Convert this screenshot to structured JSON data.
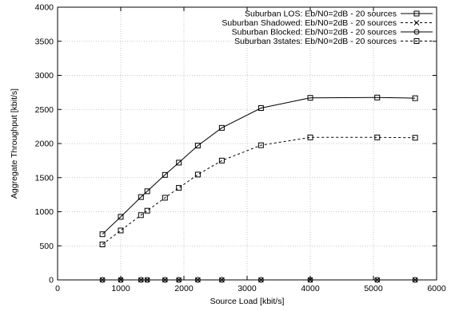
{
  "chart_data": {
    "type": "line",
    "title": "",
    "xlabel": "Source Load [kbit/s]",
    "ylabel": "Aggregate Throughput [kbit/s]",
    "xlim": [
      0,
      6000
    ],
    "ylim": [
      0,
      4000
    ],
    "xticks": [
      0,
      1000,
      2000,
      3000,
      4000,
      5000,
      6000
    ],
    "yticks": [
      0,
      500,
      1000,
      1500,
      2000,
      2500,
      3000,
      3500,
      4000
    ],
    "grid": true,
    "legend_position": "top-right",
    "series": [
      {
        "name": "Suburban LOS: Eb/N0=2dB - 20 sources",
        "line_style": "solid",
        "marker": "square",
        "x": [
          710,
          1000,
          1320,
          1420,
          1700,
          1920,
          2220,
          2600,
          3220,
          4000,
          5060,
          5660
        ],
        "y": [
          670,
          925,
          1215,
          1300,
          1540,
          1720,
          1970,
          2230,
          2520,
          2670,
          2675,
          2665
        ]
      },
      {
        "name": "Suburban Shadowed: Eb/N0=2dB - 20 sources",
        "line_style": "dashed",
        "marker": "cross",
        "x": [
          710,
          1000,
          1320,
          1420,
          1700,
          1920,
          2220,
          2600,
          3220,
          4000,
          5060,
          5660
        ],
        "y": [
          0,
          0,
          0,
          0,
          0,
          0,
          0,
          0,
          0,
          0,
          0,
          0
        ]
      },
      {
        "name": "Suburban Blocked: Eb/N0=2dB - 20 sources",
        "line_style": "solid",
        "marker": "circle",
        "x": [
          710,
          1000,
          1320,
          1420,
          1700,
          1920,
          2220,
          2600,
          3220,
          4000,
          5060,
          5660
        ],
        "y": [
          0,
          0,
          0,
          0,
          0,
          0,
          0,
          0,
          0,
          0,
          0,
          0
        ]
      },
      {
        "name": "Suburban 3states: Eb/N0=2dB - 20 sources",
        "line_style": "dashed",
        "marker": "square",
        "x": [
          710,
          1000,
          1320,
          1420,
          1700,
          1920,
          2220,
          2600,
          3220,
          4000,
          5060,
          5660
        ],
        "y": [
          520,
          725,
          950,
          1015,
          1205,
          1350,
          1545,
          1750,
          1975,
          2090,
          2090,
          2085
        ]
      }
    ]
  }
}
